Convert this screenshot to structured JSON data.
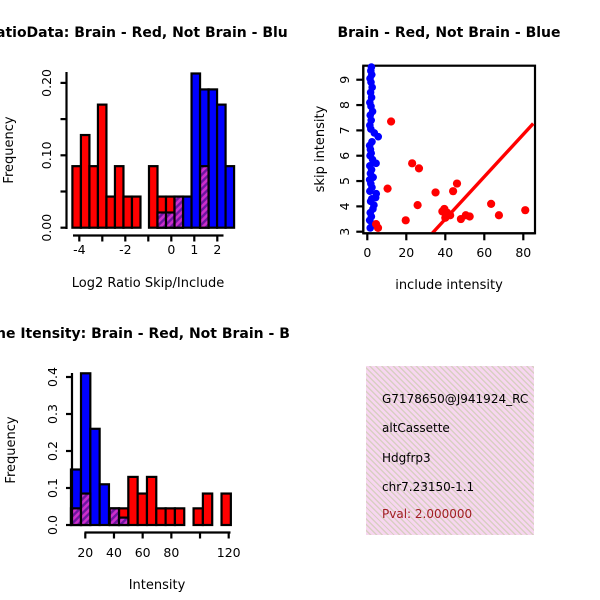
{
  "colors": {
    "red": "#ff0000",
    "blue": "#0000ff",
    "black": "#000000",
    "purple_hatch_base": "#cc2ecc",
    "purple_hatch_stripe": "#6e15a0",
    "info_box_bg": "#f7d6f0",
    "info_box_stripe": "#d8cfc2",
    "pval_text": "#a11e22"
  },
  "chart_data": [
    {
      "id": "log2_ratio_histogram",
      "type": "bar",
      "title": "atioData: Brain - Red, Not Brain - Blu",
      "xlabel": "Log2 Ratio Skip/Include",
      "ylabel": "Frequency",
      "xlim": [
        -4.6,
        2.8
      ],
      "ylim": [
        0,
        0.22
      ],
      "x_ticks": [
        {
          "v": -4,
          "label": "-4"
        },
        {
          "v": -3,
          "label": ""
        },
        {
          "v": -2,
          "label": "-2"
        },
        {
          "v": -1,
          "label": ""
        },
        {
          "v": 0,
          "label": "0"
        },
        {
          "v": 1,
          "label": "1"
        },
        {
          "v": 2,
          "label": "2"
        }
      ],
      "y_ticks": [
        {
          "v": 0,
          "label": "0.00"
        },
        {
          "v": 0.05,
          "label": ""
        },
        {
          "v": 0.1,
          "label": "0.10"
        },
        {
          "v": 0.15,
          "label": ""
        },
        {
          "v": 0.2,
          "label": "0.20"
        }
      ],
      "bars": {
        "red": [
          [
            -4.3,
            -3.93,
            0.085
          ],
          [
            -3.93,
            -3.56,
            0.128
          ],
          [
            -3.56,
            -3.19,
            0.085
          ],
          [
            -3.19,
            -2.82,
            0.17
          ],
          [
            -2.82,
            -2.45,
            0.043
          ],
          [
            -2.45,
            -2.08,
            0.085
          ],
          [
            -2.08,
            -1.71,
            0.043
          ],
          [
            -1.71,
            -1.34,
            0.043
          ],
          [
            -0.97,
            -0.6,
            0.085
          ],
          [
            -0.6,
            -0.23,
            0.043
          ],
          [
            -0.23,
            0.14,
            0.043
          ],
          [
            0.14,
            0.51,
            0.043
          ]
        ],
        "blue": [
          [
            0.51,
            0.88,
            0.043
          ],
          [
            0.88,
            1.25,
            0.213
          ],
          [
            1.25,
            1.62,
            0.191
          ],
          [
            1.62,
            1.99,
            0.191
          ],
          [
            1.99,
            2.36,
            0.17
          ],
          [
            2.36,
            2.73,
            0.085
          ]
        ],
        "overlap": [
          [
            -0.6,
            -0.23,
            0.021
          ],
          [
            -0.23,
            0.14,
            0.021
          ],
          [
            0.14,
            0.51,
            0.043
          ],
          [
            1.25,
            1.62,
            0.085
          ]
        ]
      }
    },
    {
      "id": "intensity_scatter",
      "type": "scatter",
      "title": "Brain - Red, Not Brain - Blue",
      "xlabel": "include intensity",
      "ylabel": "skip intensity",
      "xlim": [
        -2,
        86
      ],
      "ylim": [
        2.94,
        9.55
      ],
      "x_ticks": [
        0,
        20,
        40,
        60,
        80
      ],
      "y_ticks": [
        3,
        4,
        5,
        6,
        7,
        8,
        9
      ],
      "blue_points": [
        [
          1.5,
          3.15
        ],
        [
          2.6,
          3.3
        ],
        [
          1.2,
          3.45
        ],
        [
          2.1,
          3.6
        ],
        [
          1.5,
          3.75
        ],
        [
          2.9,
          3.9
        ],
        [
          3.4,
          4.05
        ],
        [
          1.7,
          4.2
        ],
        [
          2.3,
          4.3
        ],
        [
          4.3,
          4.35
        ],
        [
          4.6,
          4.5
        ],
        [
          1.3,
          4.6
        ],
        [
          2.4,
          4.75
        ],
        [
          1.8,
          4.9
        ],
        [
          1.2,
          5.05
        ],
        [
          3.0,
          5.15
        ],
        [
          1.6,
          5.3
        ],
        [
          2.2,
          5.45
        ],
        [
          1.3,
          5.6
        ],
        [
          4.5,
          5.7
        ],
        [
          2.7,
          5.85
        ],
        [
          1.4,
          6.0
        ],
        [
          2.0,
          6.1
        ],
        [
          1.6,
          6.25
        ],
        [
          1.2,
          6.4
        ],
        [
          2.4,
          6.55
        ],
        [
          5.6,
          6.75
        ],
        [
          3.6,
          6.9
        ],
        [
          1.8,
          7.05
        ],
        [
          1.3,
          7.2
        ],
        [
          2.0,
          7.4
        ],
        [
          1.5,
          7.6
        ],
        [
          2.7,
          7.75
        ],
        [
          1.9,
          7.95
        ],
        [
          1.3,
          8.1
        ],
        [
          2.2,
          8.3
        ],
        [
          1.7,
          8.5
        ],
        [
          2.5,
          8.7
        ],
        [
          1.9,
          8.9
        ],
        [
          1.4,
          9.05
        ],
        [
          2.3,
          9.2
        ],
        [
          1.8,
          9.35
        ],
        [
          2.1,
          9.5
        ]
      ],
      "red_points": [
        [
          12.2,
          7.35
        ],
        [
          10.4,
          4.7
        ],
        [
          23,
          5.7
        ],
        [
          26.5,
          5.5
        ],
        [
          25.8,
          4.05
        ],
        [
          19.7,
          3.45
        ],
        [
          4.5,
          3.3
        ],
        [
          5.5,
          3.15
        ],
        [
          35,
          4.55
        ],
        [
          38.5,
          3.8
        ],
        [
          39.5,
          3.9
        ],
        [
          41,
          3.75
        ],
        [
          40,
          3.55
        ],
        [
          42.5,
          3.65
        ],
        [
          44,
          4.6
        ],
        [
          46,
          4.9
        ],
        [
          48,
          3.5
        ],
        [
          50.5,
          3.65
        ],
        [
          52.5,
          3.6
        ],
        [
          63.5,
          4.1
        ],
        [
          67.5,
          3.65
        ],
        [
          81,
          3.85
        ]
      ],
      "line": {
        "x1": 33.3,
        "y1": 2.94,
        "x2": 85.1,
        "y2": 7.27
      }
    },
    {
      "id": "intensity_histogram",
      "type": "bar",
      "title": "ne Itensity: Brain - Red, Not Brain - B",
      "xlabel": "Intensity",
      "ylabel": "Frequency",
      "xlim": [
        8,
        124
      ],
      "ylim": [
        0,
        0.42
      ],
      "x_ticks": [
        {
          "v": 20,
          "label": "20"
        },
        {
          "v": 40,
          "label": "40"
        },
        {
          "v": 60,
          "label": "60"
        },
        {
          "v": 80,
          "label": "80"
        },
        {
          "v": 100,
          "label": ""
        },
        {
          "v": 120,
          "label": "120"
        }
      ],
      "y_ticks": [
        {
          "v": 0,
          "label": "0.0"
        },
        {
          "v": 0.1,
          "label": "0.1"
        },
        {
          "v": 0.2,
          "label": "0.2"
        },
        {
          "v": 0.3,
          "label": "0.3"
        },
        {
          "v": 0.4,
          "label": "0.4"
        }
      ],
      "bars": {
        "red": [
          [
            37,
            43.5,
            0.045
          ],
          [
            43.5,
            50,
            0.045
          ],
          [
            50,
            56.5,
            0.13
          ],
          [
            56.5,
            63,
            0.085
          ],
          [
            63,
            69.5,
            0.13
          ],
          [
            69.5,
            76,
            0.045
          ],
          [
            76,
            82.5,
            0.045
          ],
          [
            82.5,
            89,
            0.045
          ],
          [
            95.5,
            102,
            0.045
          ],
          [
            102,
            108.5,
            0.085
          ],
          [
            115,
            121.5,
            0.085
          ]
        ],
        "blue": [
          [
            10,
            17,
            0.15
          ],
          [
            17,
            23.5,
            0.41
          ],
          [
            23.5,
            30,
            0.26
          ],
          [
            30,
            36.5,
            0.11
          ]
        ],
        "overlap": [
          [
            10,
            17,
            0.045
          ],
          [
            17,
            23.5,
            0.085
          ],
          [
            37,
            43.5,
            0.045
          ],
          [
            43.5,
            50,
            0.02
          ]
        ]
      }
    }
  ],
  "info_box": {
    "lines": [
      "G7178650@J941924_RC",
      "altCassette",
      "Hdgfrp3",
      "chr7.23150-1.1"
    ],
    "pval": "Pval: 2.000000"
  }
}
